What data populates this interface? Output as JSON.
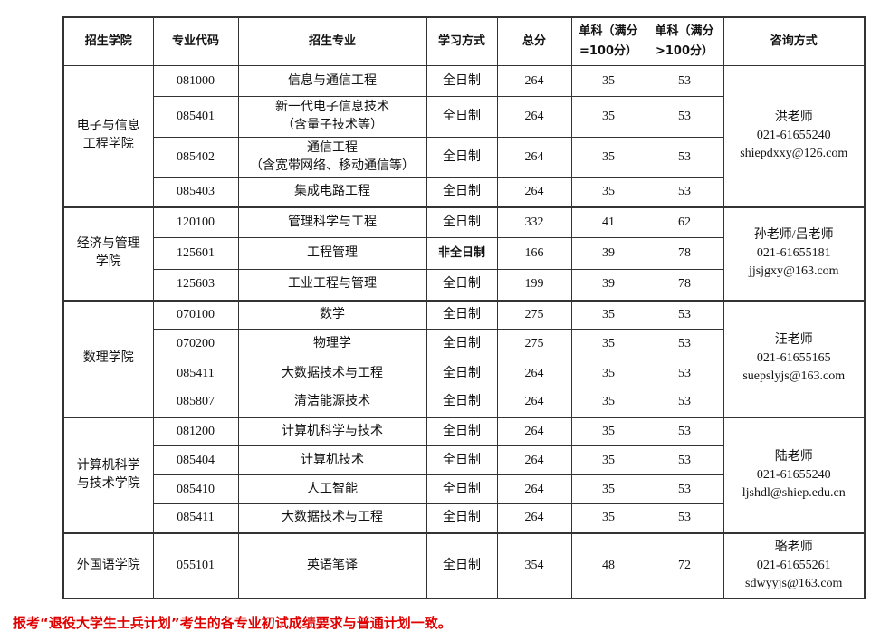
{
  "headers": [
    "招生学院",
    "专业代码",
    "招生专业",
    "学习方式",
    "总分",
    "单科（满分=100分）",
    "单科（满分>100分）",
    "咨询方式"
  ],
  "groups": [
    {
      "college": "电子与信息工程学院",
      "contact": {
        "name": "洪老师",
        "phone": "021-61655240",
        "email": "shiepdxxy@126.com"
      },
      "rows": [
        {
          "code": "081000",
          "major": "信息与通信工程",
          "major_note": "",
          "mode": "全日制",
          "total": "264",
          "s100": "35",
          "sover": "53"
        },
        {
          "code": "085401",
          "major": "新一代电子信息技术",
          "major_note": "（含量子技术等）",
          "mode": "全日制",
          "total": "264",
          "s100": "35",
          "sover": "53"
        },
        {
          "code": "085402",
          "major": "通信工程",
          "major_note": "（含宽带网络、移动通信等）",
          "mode": "全日制",
          "total": "264",
          "s100": "35",
          "sover": "53"
        },
        {
          "code": "085403",
          "major": "集成电路工程",
          "major_note": "",
          "mode": "全日制",
          "total": "264",
          "s100": "35",
          "sover": "53"
        }
      ]
    },
    {
      "college": "经济与管理学院",
      "contact": {
        "name": "孙老师/吕老师",
        "phone": "021-61655181",
        "email": "jjsjgxy@163.com"
      },
      "rows": [
        {
          "code": "120100",
          "major": "管理科学与工程",
          "mode": "全日制",
          "total": "332",
          "s100": "41",
          "sover": "62"
        },
        {
          "code": "125601",
          "major": "工程管理",
          "mode": "非全日制",
          "total": "166",
          "s100": "39",
          "sover": "78"
        },
        {
          "code": "125603",
          "major": "工业工程与管理",
          "mode": "全日制",
          "total": "199",
          "s100": "39",
          "sover": "78"
        }
      ]
    },
    {
      "college": "数理学院",
      "contact": {
        "name": "汪老师",
        "phone": "021-61655165",
        "email": "suepslyjs@163.com"
      },
      "rows": [
        {
          "code": "070100",
          "major": "数学",
          "mode": "全日制",
          "total": "275",
          "s100": "35",
          "sover": "53"
        },
        {
          "code": "070200",
          "major": "物理学",
          "mode": "全日制",
          "total": "275",
          "s100": "35",
          "sover": "53"
        },
        {
          "code": "085411",
          "major": "大数据技术与工程",
          "mode": "全日制",
          "total": "264",
          "s100": "35",
          "sover": "53"
        },
        {
          "code": "085807",
          "major": "清洁能源技术",
          "mode": "全日制",
          "total": "264",
          "s100": "35",
          "sover": "53"
        }
      ]
    },
    {
      "college": "计算机科学与技术学院",
      "contact": {
        "name": "陆老师",
        "phone": "021-61655240",
        "email": "ljshdl@shiep.edu.cn"
      },
      "rows": [
        {
          "code": "081200",
          "major": "计算机科学与技术",
          "mode": "全日制",
          "total": "264",
          "s100": "35",
          "sover": "53"
        },
        {
          "code": "085404",
          "major": "计算机技术",
          "mode": "全日制",
          "total": "264",
          "s100": "35",
          "sover": "53"
        },
        {
          "code": "085410",
          "major": "人工智能",
          "mode": "全日制",
          "total": "264",
          "s100": "35",
          "sover": "53"
        },
        {
          "code": "085411",
          "major": "大数据技术与工程",
          "mode": "全日制",
          "total": "264",
          "s100": "35",
          "sover": "53"
        }
      ]
    },
    {
      "college": "外国语学院",
      "contact": {
        "name": "骆老师",
        "phone": "021-61655261",
        "email": "sdwyyjs@163.com"
      },
      "rows": [
        {
          "code": "055101",
          "major": "英语笔译",
          "mode": "全日制",
          "total": "354",
          "s100": "48",
          "sover": "72"
        }
      ]
    }
  ],
  "footnote": "报考“退役大学生士兵计划”考生的各专业初试成绩要求与普通计划一致。",
  "colors": {
    "footnote": "#e00000"
  }
}
